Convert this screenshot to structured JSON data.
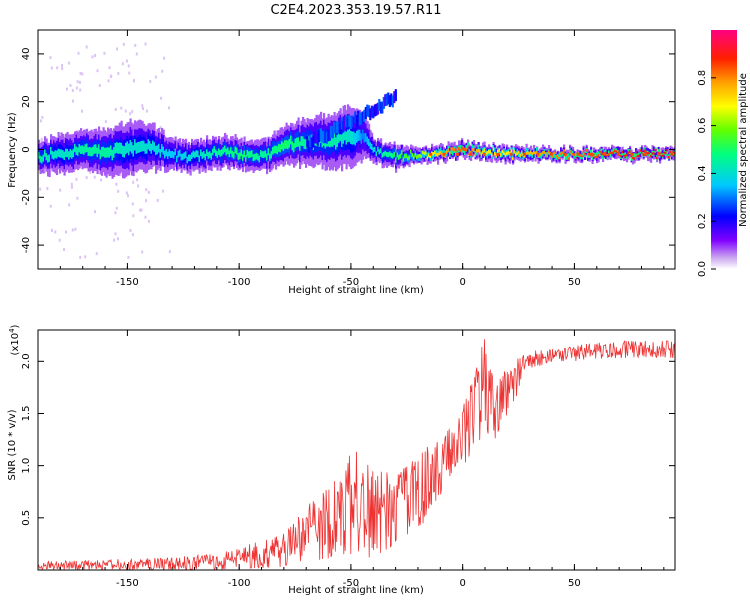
{
  "title": "C2E4.2023.353.19.57.R11",
  "chart_data": [
    {
      "type": "heatmap",
      "name": "spectrogram",
      "xlabel": "Height of straight line (km)",
      "ylabel": "Frequency (Hz)",
      "xlim": [
        -190,
        95
      ],
      "ylim": [
        -50,
        50
      ],
      "xticks": [
        -150,
        -100,
        -50,
        0,
        50
      ],
      "yticks": [
        -40,
        -20,
        0,
        20,
        40
      ],
      "colorbar": {
        "label": "Normalized spectral amplitude",
        "range": [
          0,
          1
        ],
        "ticks": [
          0.0,
          0.2,
          0.4,
          0.6,
          0.8
        ],
        "colormap": [
          "#ffffff",
          "#c8a0f0",
          "#8000ff",
          "#0000ff",
          "#00c8ff",
          "#00ff80",
          "#60ff00",
          "#ffff00",
          "#ffa000",
          "#ff2000",
          "#ff0080"
        ]
      },
      "trace": {
        "x": [
          -190,
          -180,
          -170,
          -160,
          -150,
          -140,
          -130,
          -120,
          -110,
          -100,
          -90,
          -80,
          -70,
          -60,
          -50,
          -45,
          -40,
          -30,
          -20,
          -10,
          0,
          10,
          20,
          40,
          60,
          80,
          95
        ],
        "freq": [
          -3,
          -2,
          0,
          -1,
          0,
          1,
          -2,
          -3,
          -1,
          -2,
          -3,
          2,
          3,
          4,
          5,
          6,
          -1,
          -3,
          -2,
          -2,
          0,
          -1,
          -2,
          -2,
          -2,
          -2,
          -2
        ],
        "amplitude": [
          0.45,
          0.4,
          0.45,
          0.45,
          0.4,
          0.4,
          0.35,
          0.4,
          0.45,
          0.5,
          0.45,
          0.5,
          0.45,
          0.45,
          0.4,
          0.3,
          0.4,
          0.5,
          0.6,
          0.75,
          0.85,
          0.7,
          0.7,
          0.8,
          0.85,
          0.9,
          0.9
        ],
        "spread": [
          4,
          5,
          5,
          6,
          7,
          6,
          4,
          4,
          4,
          4,
          4,
          5,
          6,
          7,
          8,
          6,
          3,
          3,
          2,
          2,
          2,
          2,
          2,
          1.5,
          1.5,
          1.5,
          1.5
        ]
      }
    },
    {
      "type": "line",
      "name": "snr",
      "xlabel": "Height of straight line (km)",
      "ylabel": "SNR (10 * v/v)",
      "yscale_label": "(x10",
      "yscale_exp": "4",
      "yscale_close": ")",
      "xlim": [
        -190,
        95
      ],
      "ylim": [
        0,
        2.3
      ],
      "xticks": [
        -150,
        -100,
        -50,
        0,
        50
      ],
      "yticks": [
        0.5,
        1.0,
        1.5,
        2.0
      ],
      "ytick_labels": [
        "0.5",
        "1.0",
        "1.5",
        "2.0"
      ],
      "color": "#ee3333",
      "envelope": {
        "x": [
          -190,
          -160,
          -130,
          -110,
          -100,
          -90,
          -80,
          -70,
          -60,
          -55,
          -50,
          -45,
          -40,
          -35,
          -30,
          -25,
          -20,
          -15,
          -10,
          -5,
          0,
          5,
          8,
          10,
          12,
          15,
          20,
          25,
          30,
          40,
          50,
          60,
          70,
          80,
          95
        ],
        "lower": [
          0.0,
          0.0,
          0.0,
          0.0,
          0.0,
          0.02,
          0.03,
          0.05,
          0.1,
          0.15,
          0.15,
          0.15,
          0.1,
          0.15,
          0.2,
          0.3,
          0.4,
          0.5,
          0.7,
          0.9,
          1.0,
          1.1,
          1.2,
          1.3,
          1.0,
          1.25,
          1.5,
          1.7,
          1.9,
          2.0,
          2.0,
          2.02,
          2.03,
          2.03,
          2.03
        ],
        "upper": [
          0.08,
          0.1,
          0.12,
          0.16,
          0.22,
          0.28,
          0.35,
          0.6,
          0.85,
          1.0,
          1.2,
          1.15,
          1.05,
          0.95,
          0.9,
          1.0,
          1.1,
          1.2,
          1.25,
          1.4,
          1.6,
          1.9,
          2.1,
          2.3,
          2.0,
          1.8,
          1.95,
          2.05,
          2.1,
          2.12,
          2.15,
          2.18,
          2.2,
          2.2,
          2.2
        ]
      }
    }
  ]
}
